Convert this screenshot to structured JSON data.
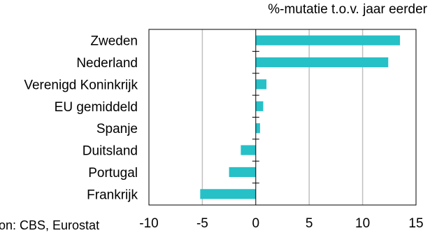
{
  "chart_data": {
    "type": "bar",
    "orientation": "horizontal",
    "unit_label": "%-mutatie t.o.v. jaar eerder",
    "source": "Bron: CBS, Eurostat",
    "categories": [
      "Zweden",
      "Nederland",
      "Verenigd Koninkrijk",
      "EU gemiddeld",
      "Spanje",
      "Duitsland",
      "Portugal",
      "Frankrijk"
    ],
    "values": [
      13.5,
      12.4,
      1.0,
      0.7,
      0.4,
      -1.4,
      -2.5,
      -5.2
    ],
    "xlim": [
      -10,
      15
    ],
    "xticks": [
      "-10",
      "-5",
      "0",
      "5",
      "10",
      "15"
    ],
    "bar_color": "#26c0c7",
    "grid": true
  }
}
